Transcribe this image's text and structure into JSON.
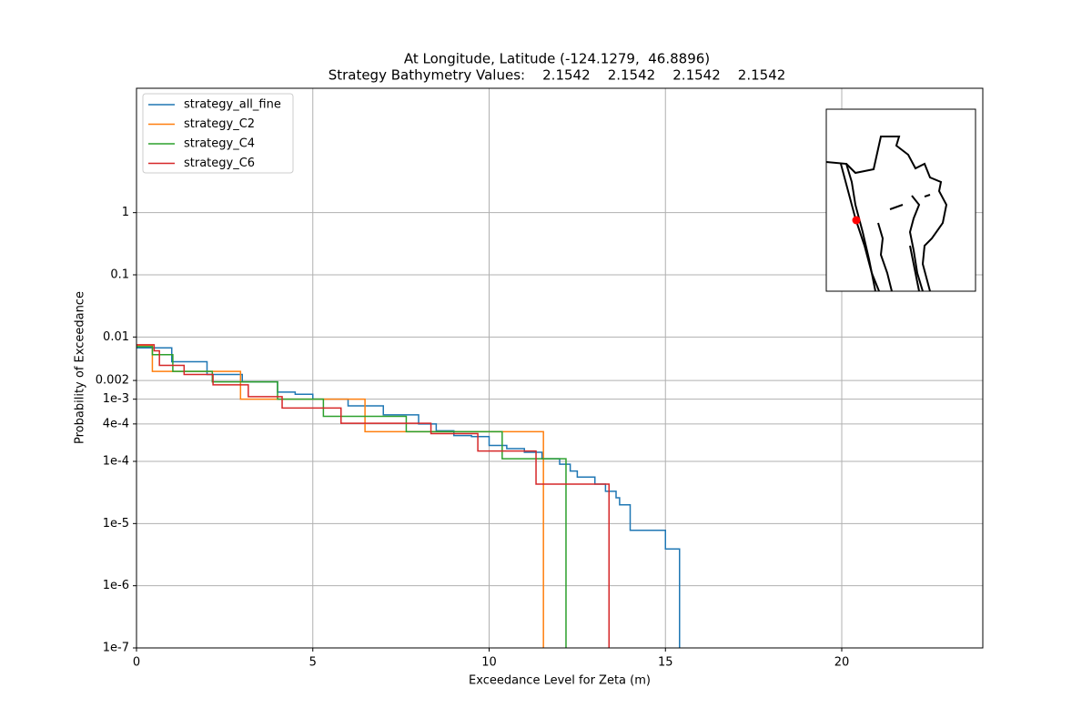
{
  "chart_data": {
    "type": "line",
    "drawstyle": "steps-post",
    "title": [
      "At Longitude, Latitude (-124.1279,  46.8896)",
      "Strategy Bathymetry Values:    2.1542    2.1542    2.1542    2.1542"
    ],
    "xlabel": "Exceedance Level for Zeta (m)",
    "ylabel": "Probability of Exceedance",
    "xlim": [
      0,
      24
    ],
    "xticks": [
      0,
      5,
      10,
      15,
      20
    ],
    "ylim": [
      1e-07,
      100
    ],
    "yscale": "log",
    "yticks": [
      {
        "value": 1e-07,
        "label": "1e-7"
      },
      {
        "value": 1e-06,
        "label": "1e-6"
      },
      {
        "value": 1e-05,
        "label": "1e-5"
      },
      {
        "value": 0.0001,
        "label": "1e-4"
      },
      {
        "value": 0.0004,
        "label": "4e-4"
      },
      {
        "value": 0.001,
        "label": "1e-3"
      },
      0.002,
      0.01,
      0.1,
      1
    ],
    "grid": true,
    "legend": "upper left",
    "series": [
      {
        "name": "strategy_all_fine",
        "color": "#1f77b4",
        "x": [
          0,
          1,
          2,
          3,
          4,
          4.5,
          5,
          6,
          7,
          8,
          8.5,
          9,
          9.5,
          10,
          10.5,
          11,
          11.5,
          12,
          12.3,
          12.5,
          13,
          13.3,
          13.6,
          13.7,
          14.0,
          15.0,
          15.4
        ],
        "values": [
          0.0067,
          0.004,
          0.0025,
          0.0019,
          0.0013,
          0.0012,
          0.001,
          0.00078,
          0.00056,
          0.0004,
          0.00031,
          0.00026,
          0.00025,
          0.00018,
          0.00016,
          0.00014,
          0.00011,
          9e-05,
          7e-05,
          5.6e-05,
          4.3e-05,
          3.3e-05,
          2.6e-05,
          2e-05,
          7.8e-06,
          3.9e-06,
          1e-07
        ]
      },
      {
        "name": "strategy_C2",
        "color": "#ff7f0e",
        "x": [
          0,
          0.45,
          2.95,
          6.48,
          11.54
        ],
        "values": [
          0.0074,
          0.0028,
          0.001,
          0.0003,
          1e-07
        ]
      },
      {
        "name": "strategy_C4",
        "color": "#2ca02c",
        "x": [
          0,
          0.45,
          1.03,
          2.15,
          4.0,
          5.3,
          7.65,
          10.37,
          12.18
        ],
        "values": [
          0.007,
          0.0052,
          0.0028,
          0.0019,
          0.001,
          0.00053,
          0.0003,
          0.00011,
          1e-07
        ]
      },
      {
        "name": "strategy_C6",
        "color": "#d62728",
        "x": [
          0,
          0.5,
          0.65,
          1.35,
          2.17,
          3.17,
          4.13,
          5.8,
          8.35,
          9.68,
          11.33,
          13.4
        ],
        "values": [
          0.0075,
          0.006,
          0.0035,
          0.0025,
          0.0017,
          0.0011,
          0.00072,
          0.00041,
          0.00028,
          0.000147,
          4.3e-05,
          1e-07
        ]
      }
    ]
  }
}
